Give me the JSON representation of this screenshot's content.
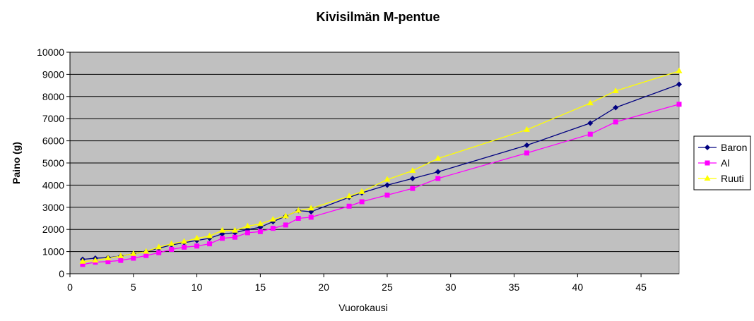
{
  "chart_data": {
    "type": "line",
    "title": "Kivisilmän M-pentue",
    "xlabel": "Vuorokausi",
    "ylabel": "Paino (g)",
    "xlim": [
      0,
      48
    ],
    "ylim": [
      0,
      10000
    ],
    "xticks": [
      0,
      5,
      10,
      15,
      20,
      25,
      30,
      35,
      40,
      45
    ],
    "yticks": [
      0,
      1000,
      2000,
      3000,
      4000,
      5000,
      6000,
      7000,
      8000,
      9000,
      10000
    ],
    "grid": "horizontal",
    "plot_background": "#c0c0c0",
    "legend_position": "right",
    "series": [
      {
        "name": "Baron",
        "color": "#000080",
        "marker": "diamond",
        "x": [
          1,
          2,
          3,
          4,
          5,
          6,
          7,
          8,
          9,
          10,
          11,
          12,
          13,
          14,
          15,
          16,
          17,
          18,
          19,
          22,
          23,
          25,
          27,
          29,
          36,
          41,
          43,
          48
        ],
        "y": [
          650,
          700,
          730,
          800,
          900,
          1000,
          1150,
          1300,
          1400,
          1500,
          1600,
          1800,
          1850,
          2000,
          2100,
          2350,
          2600,
          2850,
          2800,
          3450,
          3650,
          4000,
          4300,
          4600,
          5800,
          6800,
          7500,
          8550
        ]
      },
      {
        "name": "Al",
        "color": "#ff00ff",
        "marker": "square",
        "x": [
          1,
          2,
          3,
          4,
          5,
          6,
          7,
          8,
          9,
          10,
          11,
          12,
          13,
          14,
          15,
          16,
          17,
          18,
          19,
          22,
          23,
          25,
          27,
          29,
          36,
          41,
          43,
          48
        ],
        "y": [
          420,
          520,
          550,
          600,
          700,
          820,
          950,
          1100,
          1200,
          1250,
          1350,
          1600,
          1650,
          1850,
          1900,
          2050,
          2200,
          2500,
          2550,
          3050,
          3250,
          3550,
          3850,
          4300,
          5450,
          6300,
          6850,
          7650
        ]
      },
      {
        "name": "Ruuti",
        "color": "#ffff00",
        "marker": "triangle",
        "x": [
          1,
          2,
          3,
          4,
          5,
          6,
          7,
          8,
          9,
          10,
          11,
          12,
          13,
          14,
          15,
          16,
          17,
          18,
          19,
          22,
          23,
          25,
          27,
          29,
          36,
          41,
          43,
          48
        ],
        "y": [
          550,
          600,
          700,
          800,
          900,
          1000,
          1200,
          1350,
          1450,
          1600,
          1700,
          1950,
          1950,
          2150,
          2250,
          2450,
          2600,
          2850,
          2950,
          3500,
          3700,
          4250,
          4650,
          5200,
          6500,
          7700,
          8250,
          9150
        ]
      }
    ]
  }
}
